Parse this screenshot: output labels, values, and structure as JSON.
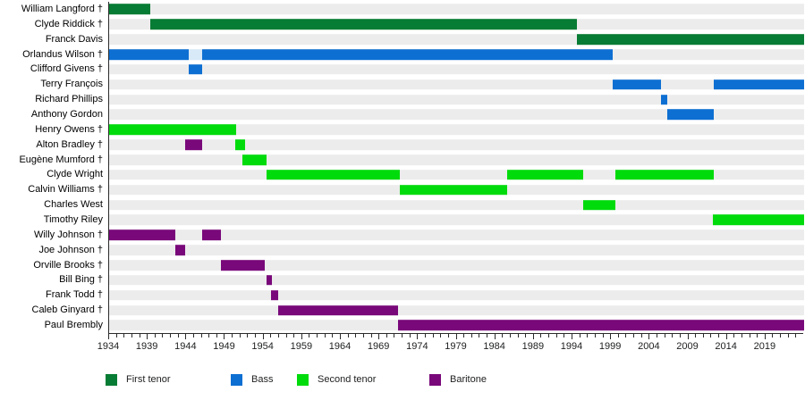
{
  "chart_data": {
    "type": "timeline",
    "title": "",
    "x_domain": [
      1934,
      2024
    ],
    "x_ticks_major": [
      1934,
      1939,
      1944,
      1949,
      1954,
      1959,
      1964,
      1969,
      1974,
      1979,
      1984,
      1989,
      1994,
      1999,
      2004,
      2009,
      2014,
      2019
    ],
    "x_tick_minor_step": 1,
    "x_minor_end": 2023,
    "grid": "row-tracks",
    "legend_position": "bottom",
    "parts": {
      "first_tenor": {
        "label": "First tenor",
        "color": "#077c34"
      },
      "bass": {
        "label": "Bass",
        "color": "#0d6fd2"
      },
      "second_tenor": {
        "label": "Second tenor",
        "color": "#00db0c"
      },
      "baritone": {
        "label": "Baritone",
        "color": "#79087a"
      },
      "bass_inactive": {
        "label": "",
        "color": "#d8e9f8"
      }
    },
    "legend": [
      "first_tenor",
      "bass",
      "second_tenor",
      "baritone"
    ],
    "members": [
      {
        "name": "William Langford †",
        "segments": [
          {
            "part": "first_tenor",
            "start": 1934,
            "end": 1939.3
          }
        ]
      },
      {
        "name": "Clyde Riddick †",
        "segments": [
          {
            "part": "first_tenor",
            "start": 1939.3,
            "end": 1994.6
          }
        ]
      },
      {
        "name": "Franck Davis",
        "segments": [
          {
            "part": "first_tenor",
            "start": 1994.6,
            "end": 2024
          }
        ]
      },
      {
        "name": "Orlandus Wilson †",
        "segments": [
          {
            "part": "bass",
            "start": 1934,
            "end": 1944.3
          },
          {
            "part": "bass_inactive",
            "start": 1944.3,
            "end": 1946
          },
          {
            "part": "bass",
            "start": 1946,
            "end": 1999.2
          }
        ]
      },
      {
        "name": "Clifford Givens †",
        "segments": [
          {
            "part": "bass",
            "start": 1944.3,
            "end": 1946
          }
        ]
      },
      {
        "name": "Terry François",
        "segments": [
          {
            "part": "bass",
            "start": 1999.2,
            "end": 2005.5
          },
          {
            "part": "bass",
            "start": 2012.3,
            "end": 2024
          }
        ]
      },
      {
        "name": "Richard Phillips",
        "segments": [
          {
            "part": "bass",
            "start": 2005.5,
            "end": 2006.3
          }
        ]
      },
      {
        "name": "Anthony Gordon",
        "segments": [
          {
            "part": "bass",
            "start": 2006.3,
            "end": 2012.3
          }
        ]
      },
      {
        "name": "Henry Owens †",
        "segments": [
          {
            "part": "second_tenor",
            "start": 1934,
            "end": 1950.4
          }
        ]
      },
      {
        "name": "Alton Bradley †",
        "segments": [
          {
            "part": "baritone",
            "start": 1943.9,
            "end": 1946.1
          },
          {
            "part": "second_tenor",
            "start": 1950.3,
            "end": 1951.6
          }
        ]
      },
      {
        "name": "Eugène Mumford †",
        "segments": [
          {
            "part": "second_tenor",
            "start": 1951.3,
            "end": 1954.4
          }
        ]
      },
      {
        "name": "Clyde Wright",
        "segments": [
          {
            "part": "second_tenor",
            "start": 1954.4,
            "end": 1971.6
          },
          {
            "part": "second_tenor",
            "start": 1985.6,
            "end": 1995.4
          },
          {
            "part": "second_tenor",
            "start": 1999.6,
            "end": 2012.3
          }
        ]
      },
      {
        "name": "Calvin Williams †",
        "segments": [
          {
            "part": "second_tenor",
            "start": 1971.6,
            "end": 1985.6
          }
        ]
      },
      {
        "name": "Charles West",
        "segments": [
          {
            "part": "second_tenor",
            "start": 1995.4,
            "end": 1999.6
          }
        ]
      },
      {
        "name": "Timothy Riley",
        "segments": [
          {
            "part": "second_tenor",
            "start": 2012.2,
            "end": 2024
          }
        ]
      },
      {
        "name": "Willy Johnson †",
        "segments": [
          {
            "part": "baritone",
            "start": 1934,
            "end": 1942.6
          },
          {
            "part": "baritone",
            "start": 1946,
            "end": 1948.5
          }
        ]
      },
      {
        "name": "Joe Johnson †",
        "segments": [
          {
            "part": "baritone",
            "start": 1942.6,
            "end": 1943.9
          }
        ]
      },
      {
        "name": "Orville Brooks †",
        "segments": [
          {
            "part": "baritone",
            "start": 1948.5,
            "end": 1954.1
          }
        ]
      },
      {
        "name": "Bill Bing †",
        "segments": [
          {
            "part": "baritone",
            "start": 1954.4,
            "end": 1955.1
          }
        ]
      },
      {
        "name": "Frank Todd †",
        "segments": [
          {
            "part": "baritone",
            "start": 1955.0,
            "end": 1955.9
          }
        ]
      },
      {
        "name": "Caleb Ginyard †",
        "segments": [
          {
            "part": "baritone",
            "start": 1955.9,
            "end": 1971.4
          }
        ]
      },
      {
        "name": "Paul Brembly",
        "segments": [
          {
            "part": "baritone",
            "start": 1971.4,
            "end": 2024
          }
        ]
      }
    ]
  },
  "styles": {
    "track_color": "#ececec",
    "axis_color": "#2b2b2b",
    "text_color": "#202122",
    "background": "#ffffff"
  }
}
